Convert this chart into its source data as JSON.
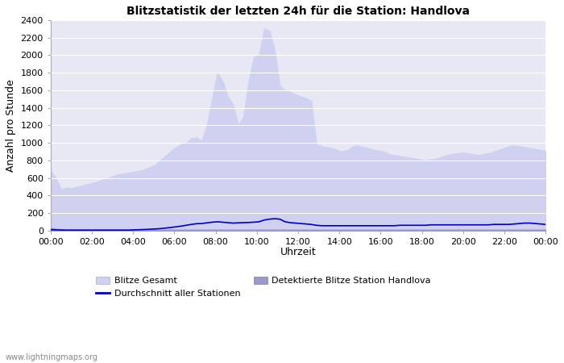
{
  "title": "Blitzstatistik der letzten 24h für die Station: Handlova",
  "xlabel": "Uhrzeit",
  "ylabel": "Anzahl pro Stunde",
  "xlabels": [
    "00:00",
    "02:00",
    "04:00",
    "06:00",
    "08:00",
    "10:00",
    "12:00",
    "14:00",
    "16:00",
    "18:00",
    "20:00",
    "22:00",
    "00:00"
  ],
  "ylim": [
    0,
    2400
  ],
  "yticks": [
    0,
    200,
    400,
    600,
    800,
    1000,
    1200,
    1400,
    1600,
    1800,
    2000,
    2200,
    2400
  ],
  "background_color": "#ffffff",
  "plot_bg_color": "#e8e8f5",
  "grid_color": "#ffffff",
  "watermark": "www.lightningmaps.org",
  "legend_labels": [
    "Blitze Gesamt",
    "Durchschnitt aller Stationen",
    "Detektierte Blitze Station Handlova"
  ],
  "blitze_gesamt_color": "#d0d0f0",
  "detektierte_color": "#9999cc",
  "durchschnitt_color": "#0000cc",
  "blitze_gesamt": [
    680,
    600,
    470,
    490,
    480,
    500,
    510,
    530,
    540,
    560,
    580,
    600,
    620,
    640,
    650,
    660,
    670,
    680,
    700,
    720,
    750,
    800,
    850,
    900,
    950,
    980,
    1000,
    1050,
    1060,
    1020,
    1200,
    1500,
    1800,
    1700,
    1530,
    1440,
    1200,
    1300,
    1700,
    1980,
    2000,
    2300,
    2280,
    2050,
    1650,
    1600,
    1580,
    1550,
    1530,
    1510,
    1480,
    980,
    960,
    950,
    940,
    920,
    900,
    920,
    960,
    970,
    950,
    940,
    920,
    910,
    900,
    870,
    860,
    850,
    840,
    830,
    820,
    810,
    800,
    810,
    820,
    840,
    860,
    870,
    880,
    890,
    880,
    870,
    860,
    870,
    880,
    900,
    920,
    940,
    960,
    970,
    960,
    950,
    940,
    930,
    920,
    910
  ],
  "detektierte_blitze": [
    30,
    20,
    15,
    12,
    10,
    10,
    10,
    10,
    10,
    10,
    10,
    10,
    10,
    10,
    10,
    10,
    10,
    10,
    10,
    10,
    10,
    10,
    10,
    10,
    10,
    10,
    10,
    10,
    10,
    10,
    10,
    10,
    10,
    10,
    10,
    10,
    10,
    10,
    10,
    10,
    10,
    10,
    10,
    10,
    10,
    10,
    10,
    10,
    10,
    10,
    10,
    10,
    10,
    10,
    10,
    10,
    10,
    10,
    10,
    10,
    10,
    10,
    10,
    10,
    10,
    10,
    10,
    10,
    10,
    10,
    10,
    10,
    10,
    10,
    10,
    10,
    10,
    10,
    10,
    10,
    10,
    10,
    10,
    10,
    10,
    10,
    10,
    10,
    10,
    10,
    10,
    10,
    10,
    10,
    10,
    10
  ],
  "durchschnitt": [
    10,
    8,
    6,
    5,
    5,
    5,
    5,
    5,
    5,
    5,
    5,
    5,
    5,
    5,
    5,
    5,
    8,
    10,
    12,
    15,
    18,
    22,
    28,
    35,
    42,
    50,
    60,
    70,
    78,
    80,
    88,
    95,
    100,
    95,
    90,
    85,
    88,
    90,
    92,
    95,
    100,
    120,
    130,
    135,
    130,
    100,
    90,
    85,
    80,
    75,
    70,
    60,
    55,
    55,
    55,
    55,
    55,
    55,
    55,
    55,
    55,
    55,
    55,
    55,
    55,
    55,
    55,
    60,
    60,
    60,
    60,
    60,
    60,
    65,
    65,
    65,
    65,
    65,
    65,
    65,
    65,
    65,
    65,
    65,
    65,
    70,
    70,
    70,
    70,
    75,
    80,
    85,
    85,
    80,
    75,
    70
  ]
}
